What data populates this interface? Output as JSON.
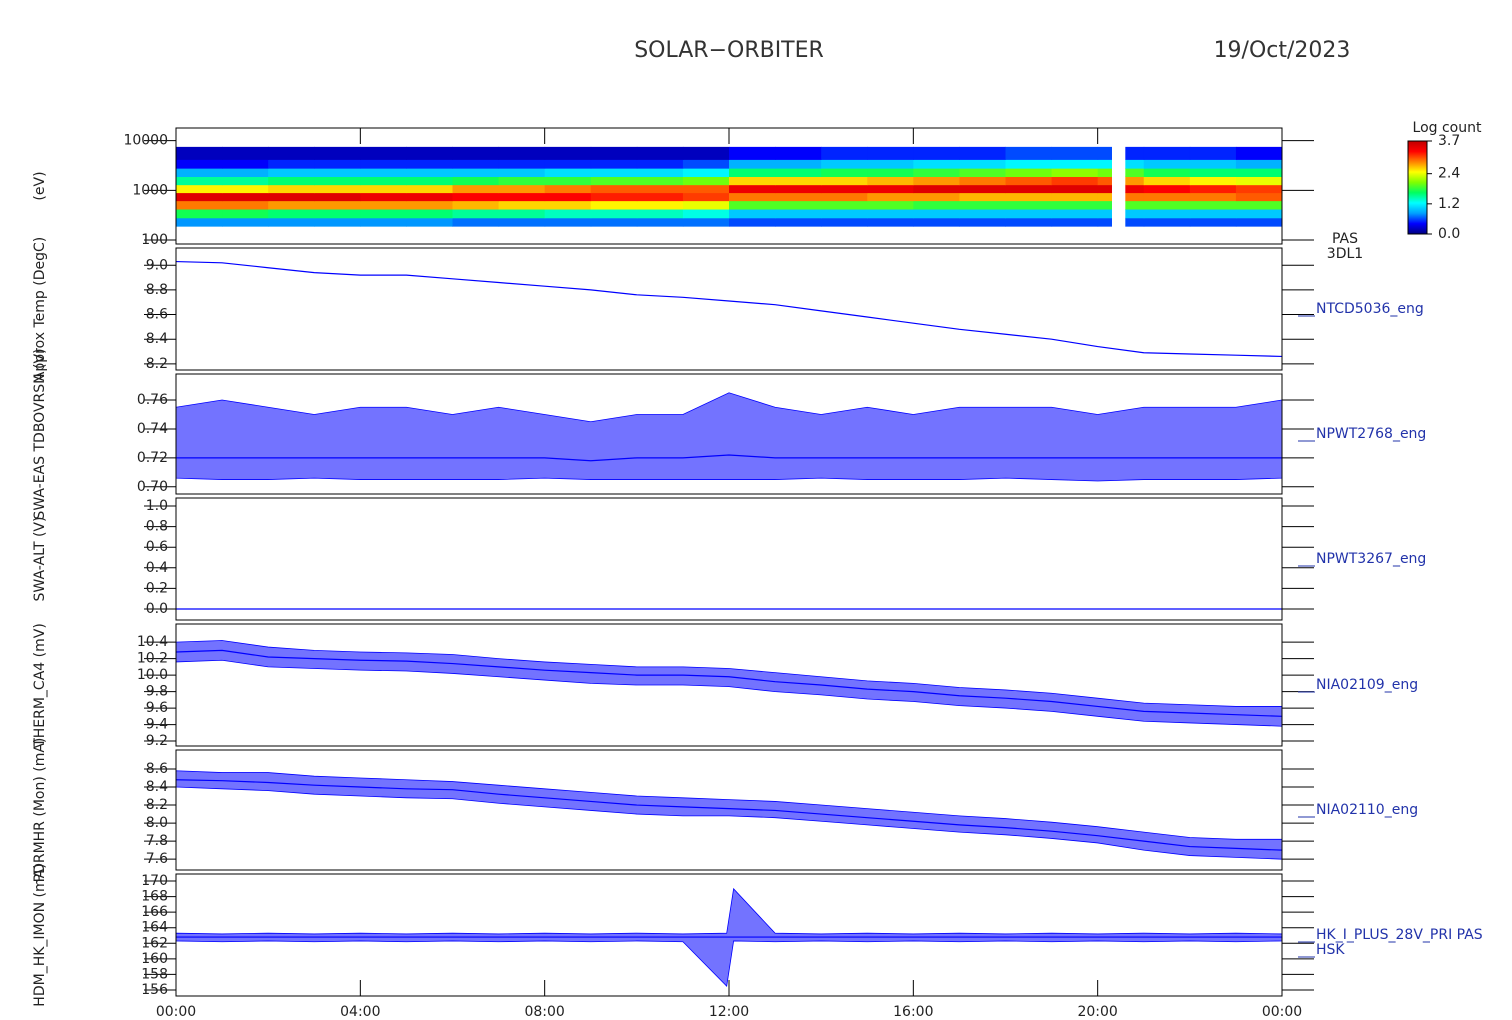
{
  "title": "SOLAR−ORBITER",
  "date": "19/Oct/2023",
  "time_axis": {
    "xlim": [
      0,
      24
    ],
    "xticks": [
      {
        "value": 0,
        "label": "00:00"
      },
      {
        "value": 4,
        "label": "04:00"
      },
      {
        "value": 8,
        "label": "08:00"
      },
      {
        "value": 12,
        "label": "12:00"
      },
      {
        "value": 16,
        "label": "16:00"
      },
      {
        "value": 20,
        "label": "20:00"
      },
      {
        "value": 24,
        "label": "00:00"
      }
    ]
  },
  "chart_data": [
    {
      "type": "heatmap",
      "ylabel": "(eV)",
      "label_lines": [
        "PAS",
        "3DL1"
      ],
      "log_scale": true,
      "ylim": [
        83,
        18000
      ],
      "yticks": [
        100,
        1000,
        10000
      ],
      "x_edges": [
        0,
        1,
        2,
        3,
        4,
        5,
        6,
        7,
        8,
        9,
        10,
        11,
        12,
        13,
        14,
        15,
        16,
        17,
        18,
        19,
        20,
        20.3,
        20.6,
        21,
        22,
        23,
        24
      ],
      "y_edges": [
        190,
        280,
        420,
        620,
        900,
        1300,
        1900,
        2800,
        4200,
        7500
      ],
      "z": [
        [
          0.8,
          0.8,
          0.8,
          0.8,
          0.8,
          0.8,
          0.7,
          0.7,
          0.7,
          0.7,
          0.7,
          0.7,
          0.6,
          0.6,
          0.6,
          0.6,
          0.6,
          0.6,
          0.6,
          0.6,
          0.6,
          null,
          0.6,
          0.6,
          0.6,
          0.6
        ],
        [
          1.7,
          1.7,
          1.6,
          1.6,
          1.6,
          1.6,
          1.5,
          1.5,
          1.4,
          1.4,
          1.4,
          1.3,
          1.0,
          1.0,
          1.0,
          1.0,
          1.0,
          1.0,
          1.0,
          1.0,
          1.0,
          null,
          1.0,
          1.0,
          1.0,
          1.0
        ],
        [
          2.9,
          2.9,
          2.8,
          2.8,
          2.8,
          2.8,
          2.7,
          2.6,
          2.6,
          2.5,
          2.5,
          2.4,
          1.9,
          1.9,
          1.9,
          1.9,
          1.8,
          1.8,
          1.8,
          1.8,
          1.8,
          null,
          1.9,
          1.9,
          1.9,
          1.9
        ],
        [
          3.5,
          3.5,
          3.5,
          3.5,
          3.4,
          3.4,
          3.3,
          3.3,
          3.3,
          3.2,
          3.2,
          3.1,
          2.9,
          2.9,
          2.9,
          2.8,
          2.8,
          2.7,
          2.7,
          2.7,
          2.7,
          null,
          2.9,
          2.9,
          2.9,
          3.0
        ],
        [
          2.5,
          2.5,
          2.6,
          2.6,
          2.6,
          2.6,
          2.8,
          2.8,
          2.9,
          3.0,
          3.0,
          3.0,
          3.4,
          3.4,
          3.4,
          3.4,
          3.5,
          3.5,
          3.5,
          3.5,
          3.5,
          null,
          3.4,
          3.3,
          3.2,
          3.1
        ],
        [
          1.5,
          1.5,
          1.6,
          1.6,
          1.6,
          1.6,
          1.7,
          1.8,
          1.8,
          1.9,
          1.9,
          2.0,
          2.6,
          2.6,
          2.6,
          2.7,
          2.8,
          2.9,
          3.0,
          3.1,
          3.0,
          null,
          2.8,
          2.6,
          2.5,
          2.4
        ],
        [
          0.9,
          0.9,
          1.0,
          1.0,
          1.0,
          1.0,
          1.0,
          1.0,
          1.1,
          1.1,
          1.1,
          1.2,
          1.6,
          1.6,
          1.7,
          1.7,
          1.8,
          1.9,
          2.0,
          2.1,
          2.0,
          null,
          1.9,
          1.7,
          1.6,
          1.6
        ],
        [
          0.4,
          0.4,
          0.5,
          0.5,
          0.5,
          0.5,
          0.5,
          0.5,
          0.5,
          0.5,
          0.5,
          0.6,
          0.9,
          0.9,
          1.0,
          1.0,
          1.1,
          1.1,
          1.2,
          1.2,
          1.2,
          null,
          1.1,
          1.0,
          1.0,
          0.9
        ],
        [
          0.2,
          0.2,
          0.2,
          0.2,
          0.2,
          0.2,
          0.2,
          0.2,
          0.2,
          0.2,
          0.2,
          0.2,
          0.4,
          0.4,
          0.5,
          0.5,
          0.5,
          0.5,
          0.6,
          0.6,
          0.6,
          null,
          0.5,
          0.5,
          0.5,
          0.4
        ]
      ],
      "zlim": [
        0,
        3.7
      ],
      "zticks": [
        {
          "value": 0,
          "label": "0.0"
        },
        1.2,
        2.4,
        3.7
      ],
      "colorbar_label": "Log count",
      "colormap": [
        "#000080",
        "#0000ff",
        "#00a0ff",
        "#00ffff",
        "#00ff60",
        "#80ff00",
        "#ffff00",
        "#ff8000",
        "#ff0000",
        "#c00000"
      ]
    },
    {
      "type": "line",
      "ylabel": "Approx Temp (DegC)",
      "label_lines": [
        "NTCD5036_eng"
      ],
      "color": "#0000ff",
      "ylim": [
        8.15,
        9.14
      ],
      "yticks": [
        8.2,
        8.4,
        8.6,
        8.8,
        {
          "value": 9,
          "label": "9.0"
        }
      ],
      "x": [
        0,
        1,
        2,
        3,
        4,
        5,
        6,
        7,
        8,
        9,
        10,
        11,
        12,
        13,
        14,
        15,
        16,
        17,
        18,
        19,
        20,
        21,
        22,
        23,
        24
      ],
      "values": [
        9.03,
        9.02,
        8.98,
        8.94,
        8.92,
        8.92,
        8.89,
        8.86,
        8.83,
        8.8,
        8.76,
        8.74,
        8.71,
        8.68,
        8.63,
        8.58,
        8.53,
        8.48,
        8.44,
        8.4,
        8.34,
        8.29,
        8.28,
        8.27,
        8.26
      ]
    },
    {
      "type": "line",
      "ylabel": "SWA-EAS TDBOVRSN (V)",
      "label_lines": [
        "NPWT2768_eng"
      ],
      "color": "#0000ff",
      "ylim": [
        0.695,
        0.778
      ],
      "yticks": [
        {
          "value": 0.7,
          "label": "0.70"
        },
        0.72,
        0.74,
        0.76
      ],
      "x": [
        0,
        1,
        2,
        3,
        4,
        5,
        6,
        7,
        8,
        9,
        10,
        11,
        12,
        13,
        14,
        15,
        16,
        17,
        18,
        19,
        20,
        21,
        22,
        23,
        24
      ],
      "values": [
        0.72,
        0.72,
        0.72,
        0.72,
        0.72,
        0.72,
        0.72,
        0.72,
        0.72,
        0.718,
        0.72,
        0.72,
        0.722,
        0.72,
        0.72,
        0.72,
        0.72,
        0.72,
        0.72,
        0.72,
        0.72,
        0.72,
        0.72,
        0.72,
        0.72
      ],
      "upper": [
        0.755,
        0.76,
        0.755,
        0.75,
        0.755,
        0.755,
        0.75,
        0.755,
        0.75,
        0.745,
        0.75,
        0.75,
        0.765,
        0.755,
        0.75,
        0.755,
        0.75,
        0.755,
        0.755,
        0.755,
        0.75,
        0.755,
        0.755,
        0.755,
        0.76
      ],
      "lower": [
        0.706,
        0.705,
        0.705,
        0.706,
        0.705,
        0.705,
        0.705,
        0.705,
        0.706,
        0.705,
        0.705,
        0.705,
        0.705,
        0.705,
        0.706,
        0.705,
        0.705,
        0.705,
        0.706,
        0.705,
        0.704,
        0.705,
        0.705,
        0.705,
        0.706
      ]
    },
    {
      "type": "line",
      "ylabel": "SWA-ALT (V)",
      "label_lines": [
        "NPWT3267_eng"
      ],
      "color": "#0000ff",
      "ylim": [
        -0.107,
        1.078
      ],
      "yticks": [
        {
          "value": 0,
          "label": "0.0"
        },
        0.2,
        0.4,
        0.6,
        0.8,
        {
          "value": 1,
          "label": "1.0"
        }
      ],
      "x": [
        0,
        24
      ],
      "values": [
        0,
        0
      ]
    },
    {
      "type": "line",
      "ylabel": "THERM_CA4 (mV)",
      "label_lines": [
        "NIA02109_eng"
      ],
      "color": "#0000ff",
      "ylim": [
        9.14,
        10.62
      ],
      "yticks": [
        9.2,
        9.4,
        9.6,
        9.8,
        {
          "value": 10,
          "label": "10.0"
        },
        10.2,
        10.4
      ],
      "x": [
        0,
        1,
        2,
        3,
        4,
        5,
        6,
        7,
        8,
        9,
        10,
        11,
        12,
        13,
        14,
        15,
        16,
        17,
        18,
        19,
        20,
        21,
        22,
        23,
        24
      ],
      "values": [
        10.28,
        10.3,
        10.22,
        10.2,
        10.18,
        10.17,
        10.14,
        10.1,
        10.06,
        10.03,
        10,
        10,
        9.98,
        9.92,
        9.88,
        9.83,
        9.8,
        9.75,
        9.72,
        9.68,
        9.62,
        9.56,
        9.54,
        9.52,
        9.5
      ],
      "upper": [
        10.4,
        10.42,
        10.34,
        10.3,
        10.28,
        10.27,
        10.25,
        10.2,
        10.16,
        10.13,
        10.1,
        10.1,
        10.08,
        10.03,
        9.98,
        9.93,
        9.9,
        9.85,
        9.82,
        9.78,
        9.72,
        9.66,
        9.64,
        9.62,
        9.62
      ],
      "lower": [
        10.16,
        10.18,
        10.1,
        10.08,
        10.06,
        10.05,
        10.02,
        9.98,
        9.94,
        9.9,
        9.88,
        9.88,
        9.86,
        9.8,
        9.76,
        9.71,
        9.68,
        9.63,
        9.6,
        9.56,
        9.5,
        9.44,
        9.42,
        9.4,
        9.38
      ]
    },
    {
      "type": "line",
      "ylabel": "PDRMHR (Mon) (mA)",
      "label_lines": [
        "NIA02110_eng"
      ],
      "color": "#0000ff",
      "ylim": [
        7.48,
        8.81
      ],
      "yticks": [
        7.6,
        7.8,
        {
          "value": 8,
          "label": "8.0"
        },
        8.2,
        8.4,
        8.6
      ],
      "x": [
        0,
        1,
        2,
        3,
        4,
        5,
        6,
        7,
        8,
        9,
        10,
        11,
        12,
        13,
        14,
        15,
        16,
        17,
        18,
        19,
        20,
        21,
        22,
        23,
        24
      ],
      "values": [
        8.48,
        8.47,
        8.45,
        8.42,
        8.4,
        8.38,
        8.37,
        8.32,
        8.28,
        8.24,
        8.2,
        8.18,
        8.16,
        8.14,
        8.1,
        8.06,
        8.02,
        7.98,
        7.95,
        7.91,
        7.86,
        7.8,
        7.74,
        7.72,
        7.7
      ],
      "upper": [
        8.58,
        8.56,
        8.56,
        8.52,
        8.5,
        8.48,
        8.46,
        8.42,
        8.38,
        8.34,
        8.3,
        8.28,
        8.26,
        8.24,
        8.2,
        8.16,
        8.12,
        8.08,
        8.05,
        8.01,
        7.96,
        7.9,
        7.84,
        7.82,
        7.82
      ],
      "lower": [
        8.4,
        8.38,
        8.36,
        8.32,
        8.3,
        8.28,
        8.27,
        8.22,
        8.18,
        8.14,
        8.1,
        8.08,
        8.08,
        8.06,
        8.02,
        7.98,
        7.94,
        7.9,
        7.87,
        7.83,
        7.78,
        7.7,
        7.64,
        7.62,
        7.6
      ]
    },
    {
      "type": "line",
      "ylabel": "HDM_HK_IMON (mA)",
      "label_lines": [
        "HK_I_PLUS_28V_PRI PAS",
        "HSK"
      ],
      "color": "#0000ff",
      "ylim": [
        155.23,
        170.9
      ],
      "yticks": [
        156,
        158,
        160,
        162,
        164,
        166,
        168,
        170
      ],
      "x": [
        0,
        1,
        2,
        3,
        4,
        5,
        6,
        7,
        8,
        9,
        10,
        11,
        11.95,
        12.1,
        13,
        14,
        15,
        16,
        17,
        18,
        19,
        20,
        21,
        22,
        23,
        24
      ],
      "values": [
        162.8,
        162.8,
        162.8,
        162.8,
        162.8,
        162.8,
        162.8,
        162.8,
        162.8,
        162.8,
        162.8,
        162.8,
        162.8,
        162.8,
        162.8,
        162.8,
        162.8,
        162.8,
        162.8,
        162.8,
        162.8,
        162.8,
        162.8,
        162.8,
        162.8,
        162.8
      ],
      "upper": [
        163.3,
        163.2,
        163.3,
        163.2,
        163.3,
        163.2,
        163.3,
        163.2,
        163.3,
        163.2,
        163.3,
        163.2,
        163.3,
        169,
        163.3,
        163.2,
        163.3,
        163.2,
        163.3,
        163.2,
        163.3,
        163.2,
        163.3,
        163.2,
        163.3,
        163.2
      ],
      "lower": [
        162.3,
        162.2,
        162.3,
        162.2,
        162.3,
        162.2,
        162.3,
        162.2,
        162.3,
        162.2,
        162.3,
        162.2,
        156.5,
        162.3,
        162.2,
        162.3,
        162.2,
        162.3,
        162.2,
        162.3,
        162.2,
        162.3,
        162.2,
        162.3,
        162.2,
        162.3
      ]
    }
  ]
}
